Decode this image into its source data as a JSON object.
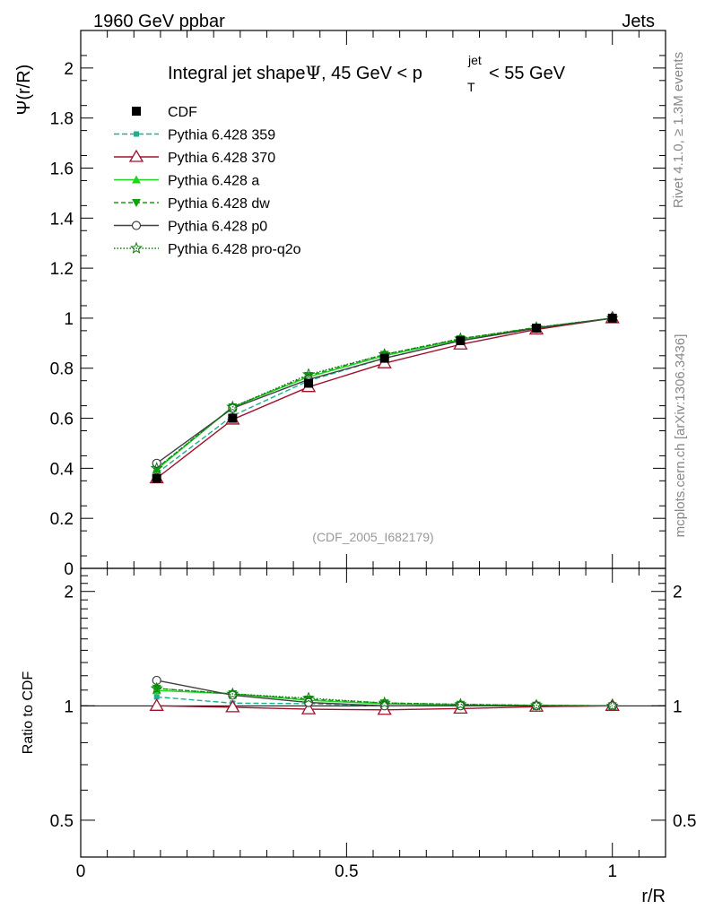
{
  "header": {
    "left": "1960 GeV ppbar",
    "right": "Jets"
  },
  "title": {
    "prefix": "Integral jet shape",
    "psi": "Ψ",
    "middle": ", 45 GeV < p",
    "sup": "jet",
    "sub": "T",
    "suffix": " < 55 GeV"
  },
  "side": {
    "rivet": "Rivet 4.1.0, ≥ 1.3M events",
    "mcplots": "mcplots.cern.ch [arXiv:1306.3436]"
  },
  "analysis_tag": "(CDF_2005_I682179)",
  "colors": {
    "cdf": "#000000",
    "p359": "#19b28c",
    "p370": "#a0102c",
    "a": "#1fd61f",
    "dw": "#10a010",
    "p0": "#404040",
    "proq2o": "#0c7a0c",
    "side_text": "#888888"
  },
  "chart_data": {
    "type": "line",
    "x": [
      0.1429,
      0.2857,
      0.4286,
      0.5714,
      0.7143,
      0.8571,
      1.0
    ],
    "main": {
      "ylabel": "Ψ(r/R)",
      "xlim": [
        0,
        1.1
      ],
      "ylim": [
        0,
        2.15
      ],
      "yticks": [
        0,
        0.2,
        0.4,
        0.6,
        0.8,
        1,
        1.2,
        1.4,
        1.6,
        1.8,
        2
      ],
      "ytick_labels": [
        "0",
        "0.2",
        "0.4",
        "0.6",
        "0.8",
        "1",
        "1.2",
        "1.4",
        "1.6",
        "1.8",
        "2"
      ]
    },
    "ratio": {
      "ylabel": "Ratio to CDF",
      "xlabel": "r/R",
      "ylim": [
        0.4,
        2.3
      ],
      "log": true,
      "yticks": [
        0.5,
        1,
        2
      ],
      "ytick_labels": [
        "0.5",
        "1",
        "2"
      ],
      "xticks": [
        0,
        0.5,
        1
      ],
      "xtick_labels": [
        "0",
        "0.5",
        "1"
      ]
    },
    "series": [
      {
        "key": "cdf",
        "name": "CDF",
        "values": [
          0.36,
          0.6,
          0.74,
          0.84,
          0.91,
          0.96,
          1.0
        ],
        "marker": "square",
        "dash": "none"
      },
      {
        "key": "p359",
        "name": "Pythia 6.428 359",
        "values": [
          0.38,
          0.61,
          0.75,
          0.84,
          0.91,
          0.96,
          1.0
        ],
        "marker": "smallsquare",
        "dash": "6,3"
      },
      {
        "key": "p370",
        "name": "Pythia 6.428 370",
        "values": [
          0.36,
          0.595,
          0.725,
          0.82,
          0.895,
          0.955,
          1.0
        ],
        "marker": "opentriangle",
        "dash": "none"
      },
      {
        "key": "a",
        "name": "Pythia 6.428 a",
        "values": [
          0.395,
          0.645,
          0.765,
          0.85,
          0.915,
          0.962,
          1.0
        ],
        "marker": "triangle",
        "dash": "none"
      },
      {
        "key": "dw",
        "name": "Pythia 6.428 dw",
        "values": [
          0.4,
          0.645,
          0.77,
          0.855,
          0.918,
          0.963,
          1.0
        ],
        "marker": "invtriangle",
        "dash": "5,3"
      },
      {
        "key": "p0",
        "name": "Pythia 6.428 p0",
        "values": [
          0.42,
          0.64,
          0.755,
          0.84,
          0.91,
          0.96,
          1.0
        ],
        "marker": "opencircle",
        "dash": "none"
      },
      {
        "key": "proq2o",
        "name": "Pythia 6.428 pro-q2o",
        "values": [
          0.4,
          0.645,
          0.775,
          0.855,
          0.918,
          0.963,
          1.0
        ],
        "marker": "star",
        "dash": "1.5,2"
      }
    ]
  }
}
